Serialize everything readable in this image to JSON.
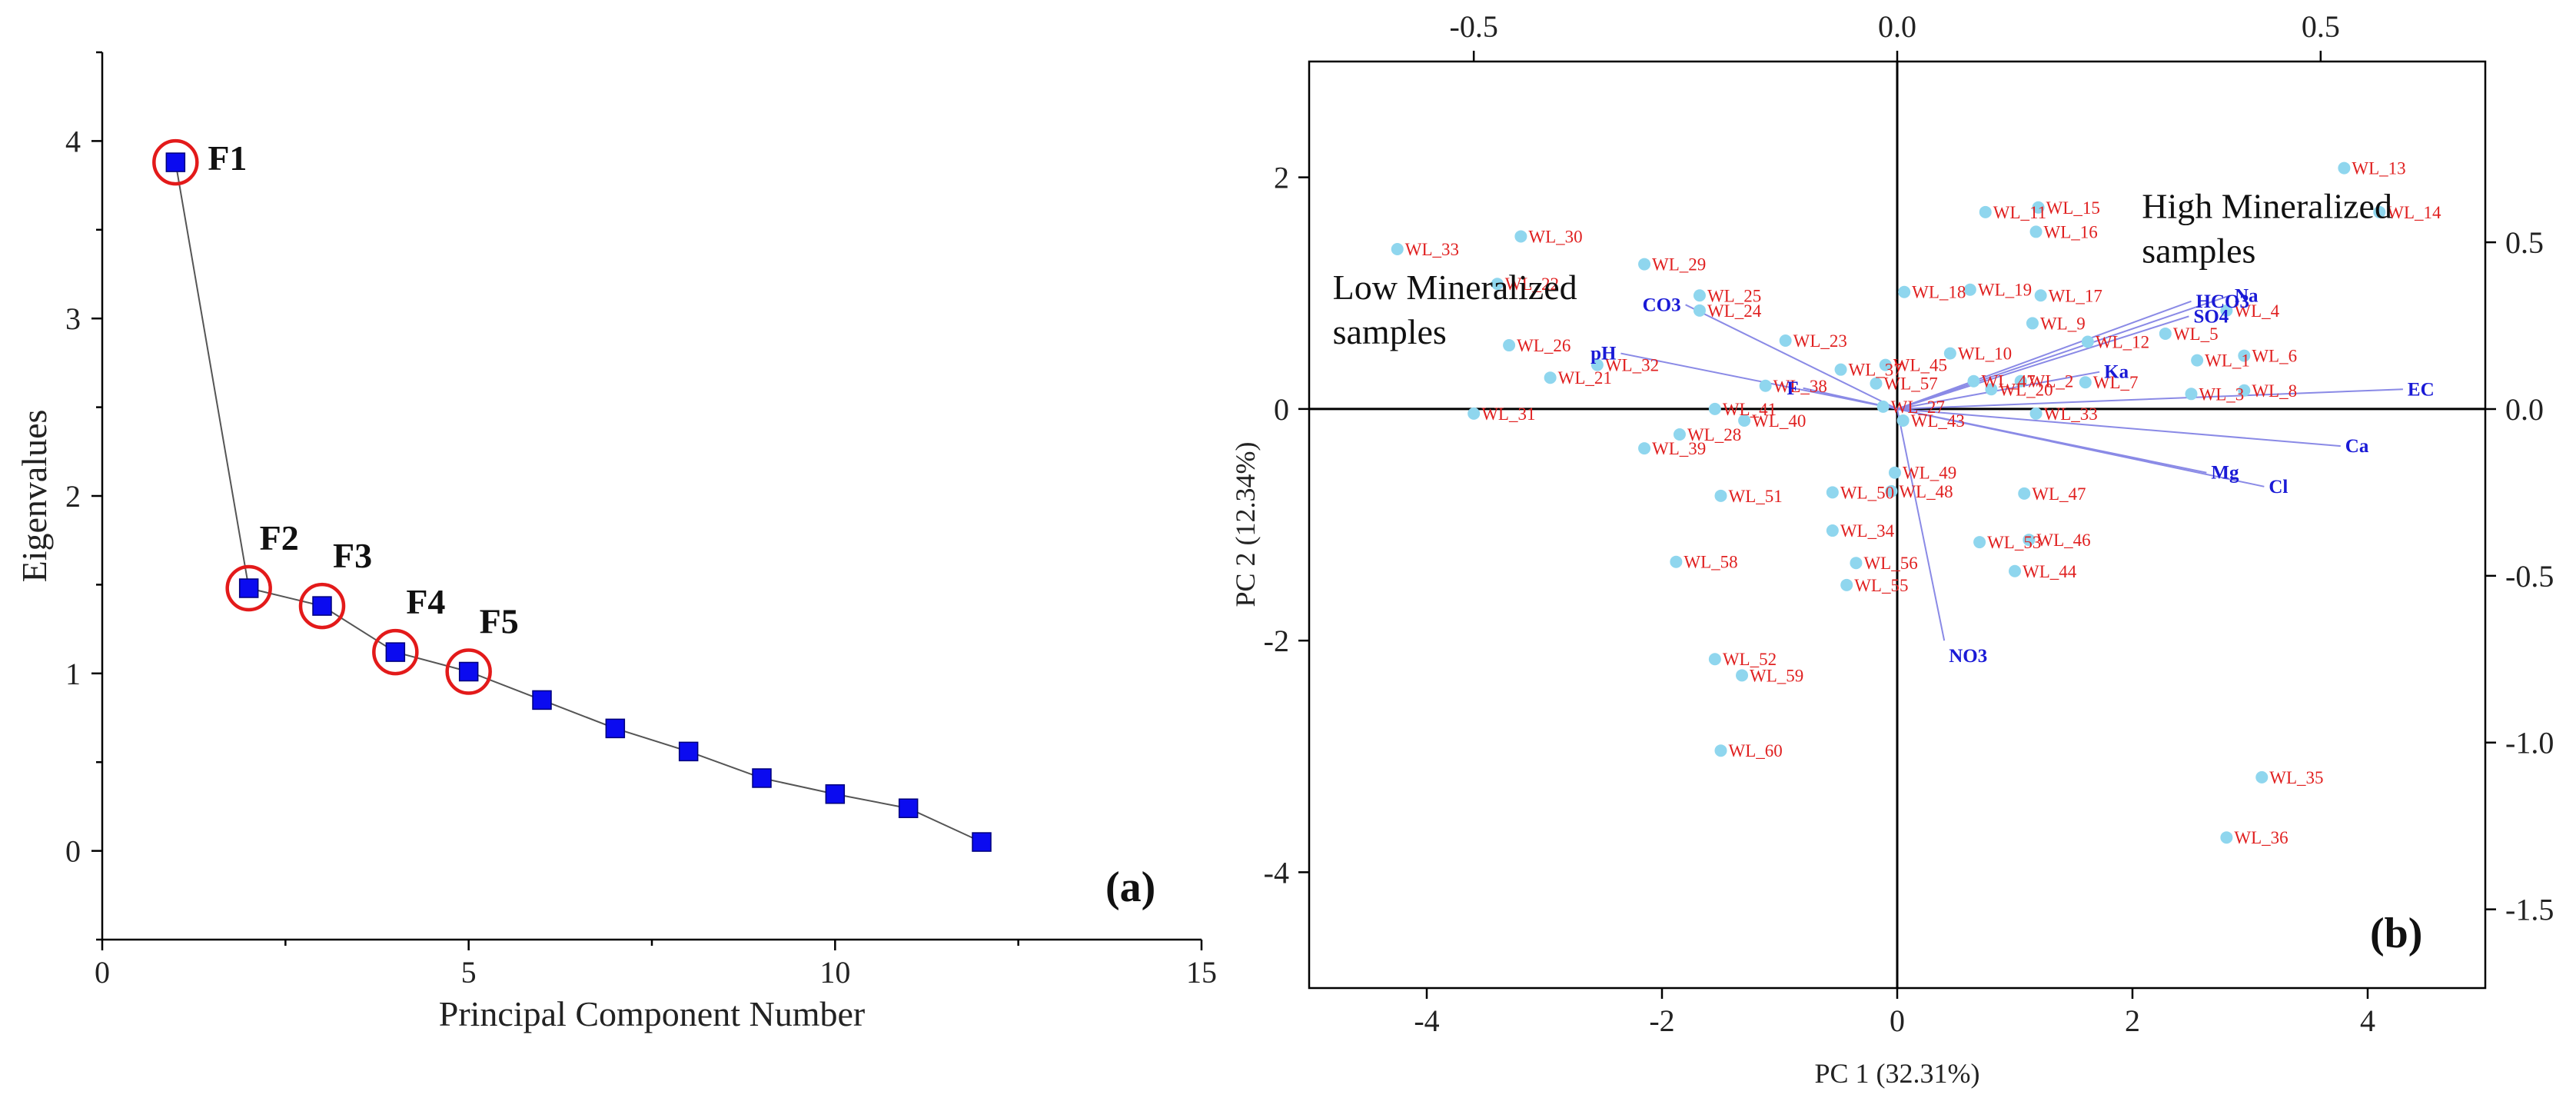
{
  "chart_data": [
    {
      "type": "line",
      "panel_label": "(a)",
      "title": "",
      "xlabel": "Principal Component Number",
      "ylabel": "Eigenvalues",
      "xlim": [
        0,
        15
      ],
      "ylim": [
        -0.5,
        4.5
      ],
      "xticks": [
        0,
        5,
        10,
        15
      ],
      "yticks": [
        0,
        1,
        2,
        3,
        4
      ],
      "x": [
        1,
        2,
        3,
        4,
        5,
        6,
        7,
        8,
        9,
        10,
        11,
        12
      ],
      "values": [
        3.88,
        1.48,
        1.38,
        1.12,
        1.01,
        0.85,
        0.69,
        0.56,
        0.41,
        0.32,
        0.24,
        0.05
      ],
      "highlighted": [
        {
          "label": "F1",
          "x": 1
        },
        {
          "label": "F2",
          "x": 2
        },
        {
          "label": "F3",
          "x": 3
        },
        {
          "label": "F4",
          "x": 4
        },
        {
          "label": "F5",
          "x": 5
        }
      ]
    },
    {
      "type": "scatter",
      "panel_label": "(b)",
      "title": "",
      "xlabel": "PC 1 (32.31%)",
      "ylabel": "PC 2 (12.34%)",
      "xlim": [
        -5,
        5
      ],
      "ylim": [
        -5,
        3
      ],
      "xticks": [
        -4,
        -2,
        0,
        2,
        4
      ],
      "yticks": [
        2,
        0,
        -2,
        -4
      ],
      "top_axis": {
        "range": [
          -0.6944,
          0.6944
        ],
        "ticks": [
          -0.5,
          0.0,
          0.5
        ],
        "tick_labels": [
          "-0.5",
          "0.0",
          "0.5"
        ]
      },
      "right_axis": {
        "range": [
          -1.736,
          1.042
        ],
        "ticks": [
          0.5,
          0.0,
          -0.5,
          -1.0,
          -1.5
        ],
        "tick_labels": [
          "0.5",
          "0.0",
          "-0.5",
          "-1.0",
          "-1.5"
        ]
      },
      "group_labels": [
        {
          "text": "Low Mineralized samples",
          "lines": [
            "Low Mineralized",
            "samples"
          ],
          "x": -4.8,
          "y": 0.95
        },
        {
          "text": "High Mineralized samples",
          "lines": [
            "High Mineralized",
            "samples"
          ],
          "x": 2.08,
          "y": 1.65
        }
      ],
      "loadings": [
        {
          "name": "Na",
          "x": 2.83,
          "y": 0.98
        },
        {
          "name": "HCO3",
          "x": 2.5,
          "y": 0.93
        },
        {
          "name": "SO4",
          "x": 2.48,
          "y": 0.8
        },
        {
          "name": "Ka",
          "x": 1.72,
          "y": 0.32
        },
        {
          "name": "EC",
          "x": 4.3,
          "y": 0.17
        },
        {
          "name": "Ca",
          "x": 3.77,
          "y": -0.32
        },
        {
          "name": "Mg",
          "x": 2.63,
          "y": -0.55
        },
        {
          "name": "Cl",
          "x": 3.12,
          "y": -0.67
        },
        {
          "name": "NO3",
          "x": 0.4,
          "y": -2.0
        },
        {
          "name": "CO3",
          "x": -1.8,
          "y": 0.9
        },
        {
          "name": "pH",
          "x": -2.35,
          "y": 0.48
        },
        {
          "name": "F",
          "x": -0.8,
          "y": 0.18
        }
      ],
      "scores": [
        {
          "name": "WL_13",
          "x": 3.8,
          "y": 2.08
        },
        {
          "name": "WL_14",
          "x": 4.1,
          "y": 1.7
        },
        {
          "name": "WL_15",
          "x": 1.2,
          "y": 1.74
        },
        {
          "name": "WL_11",
          "x": 0.75,
          "y": 1.7
        },
        {
          "name": "WL_16",
          "x": 1.18,
          "y": 1.53
        },
        {
          "name": "WL_19",
          "x": 0.62,
          "y": 1.03
        },
        {
          "name": "WL_18",
          "x": 0.06,
          "y": 1.01
        },
        {
          "name": "WL_17",
          "x": 1.22,
          "y": 0.98
        },
        {
          "name": "WL_4",
          "x": 2.8,
          "y": 0.85
        },
        {
          "name": "WL_9",
          "x": 1.15,
          "y": 0.74
        },
        {
          "name": "WL_5",
          "x": 2.28,
          "y": 0.65
        },
        {
          "name": "WL_12",
          "x": 1.62,
          "y": 0.58
        },
        {
          "name": "WL_10",
          "x": 0.45,
          "y": 0.48
        },
        {
          "name": "WL_1",
          "x": 2.55,
          "y": 0.42
        },
        {
          "name": "WL_6",
          "x": 2.95,
          "y": 0.46
        },
        {
          "name": "WL_45",
          "x": -0.1,
          "y": 0.38
        },
        {
          "name": "WL_37",
          "x": -0.48,
          "y": 0.34
        },
        {
          "name": "WL_57",
          "x": -0.18,
          "y": 0.22
        },
        {
          "name": "WL_47",
          "x": 0.65,
          "y": 0.24
        },
        {
          "name": "WL_2",
          "x": 1.05,
          "y": 0.24
        },
        {
          "name": "WL_7",
          "x": 1.6,
          "y": 0.23
        },
        {
          "name": "WL_20",
          "x": 0.8,
          "y": 0.17
        },
        {
          "name": "WL_3",
          "x": 2.5,
          "y": 0.13
        },
        {
          "name": "WL_8",
          "x": 2.95,
          "y": 0.16
        },
        {
          "name": "WL_27",
          "x": -0.12,
          "y": 0.02
        },
        {
          "name": "WL_33",
          "x": 1.18,
          "y": -0.04
        },
        {
          "name": "WL_43",
          "x": 0.05,
          "y": -0.1
        },
        {
          "name": "WL_23",
          "x": -0.95,
          "y": 0.59
        },
        {
          "name": "WL_38",
          "x": -1.12,
          "y": 0.2
        },
        {
          "name": "WL_41",
          "x": -1.55,
          "y": 0.0
        },
        {
          "name": "WL_40",
          "x": -1.3,
          "y": -0.1
        },
        {
          "name": "WL_28",
          "x": -1.85,
          "y": -0.22
        },
        {
          "name": "WL_39",
          "x": -2.15,
          "y": -0.34
        },
        {
          "name": "WL_31",
          "x": -3.6,
          "y": -0.04
        },
        {
          "name": "WL_21",
          "x": -2.95,
          "y": 0.27
        },
        {
          "name": "WL_32",
          "x": -2.55,
          "y": 0.38
        },
        {
          "name": "WL_26",
          "x": -3.3,
          "y": 0.55
        },
        {
          "name": "WL_25",
          "x": -1.68,
          "y": 0.98
        },
        {
          "name": "WL_24",
          "x": -1.68,
          "y": 0.85
        },
        {
          "name": "WL_29",
          "x": -2.15,
          "y": 1.25
        },
        {
          "name": "WL_22",
          "x": -3.4,
          "y": 1.08
        },
        {
          "name": "WL_30",
          "x": -3.2,
          "y": 1.49
        },
        {
          "name": "WL_33",
          "x": -4.25,
          "y": 1.38
        },
        {
          "name": "WL_49",
          "x": -0.02,
          "y": -0.55
        },
        {
          "name": "WL_48",
          "x": -0.05,
          "y": -0.71
        },
        {
          "name": "WL_50",
          "x": -0.55,
          "y": -0.72
        },
        {
          "name": "WL_51",
          "x": -1.5,
          "y": -0.75
        },
        {
          "name": "WL_47",
          "x": 1.08,
          "y": -0.73
        },
        {
          "name": "WL_34",
          "x": -0.55,
          "y": -1.05
        },
        {
          "name": "WL_53",
          "x": 0.7,
          "y": -1.15
        },
        {
          "name": "WL_46",
          "x": 1.12,
          "y": -1.13
        },
        {
          "name": "WL_56",
          "x": -0.35,
          "y": -1.33
        },
        {
          "name": "WL_44",
          "x": 1.0,
          "y": -1.4
        },
        {
          "name": "WL_55",
          "x": -0.43,
          "y": -1.52
        },
        {
          "name": "WL_58",
          "x": -1.88,
          "y": -1.32
        },
        {
          "name": "WL_52",
          "x": -1.55,
          "y": -2.16
        },
        {
          "name": "WL_59",
          "x": -1.32,
          "y": -2.3
        },
        {
          "name": "WL_60",
          "x": -1.5,
          "y": -2.95
        },
        {
          "name": "WL_35",
          "x": 3.1,
          "y": -3.18
        },
        {
          "name": "WL_36",
          "x": 2.8,
          "y": -3.7
        }
      ]
    }
  ]
}
